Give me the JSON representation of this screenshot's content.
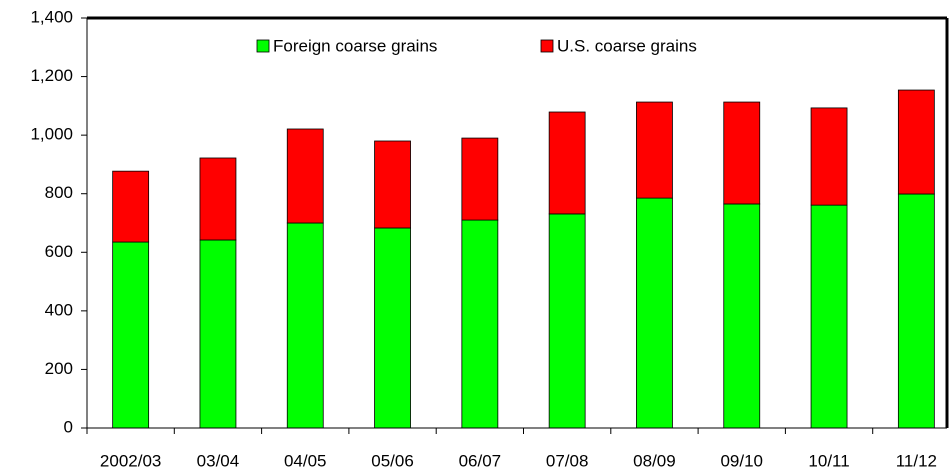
{
  "chart_data": {
    "type": "stacked-bar",
    "categories": [
      "2002/03",
      "03/04",
      "04/05",
      "05/06",
      "06/07",
      "07/08",
      "08/09",
      "09/10",
      "10/11",
      "11/12"
    ],
    "series": [
      {
        "name": "Foreign coarse grains",
        "color": "#00ff00",
        "values": [
          635,
          642,
          700,
          683,
          710,
          731,
          785,
          765,
          761,
          799
        ]
      },
      {
        "name": "U.S. coarse grains",
        "color": "#ff0000",
        "values": [
          242,
          280,
          321,
          297,
          280,
          348,
          328,
          348,
          332,
          355
        ]
      }
    ],
    "ylim": [
      0,
      1400
    ],
    "yticks": [
      0,
      200,
      400,
      600,
      800,
      {
        "value": 1000,
        "label": "1,000"
      },
      {
        "value": 1200,
        "label": "1,200"
      },
      {
        "value": 1400,
        "label": "1,400"
      }
    ],
    "legend": "top"
  }
}
